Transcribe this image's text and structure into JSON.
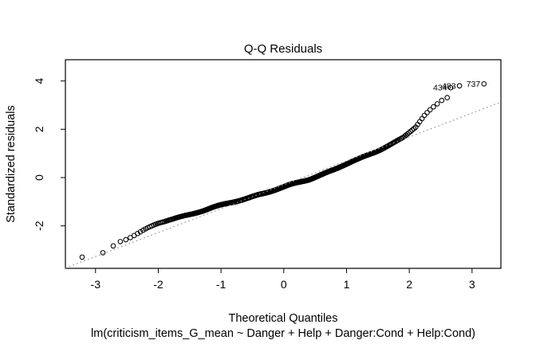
{
  "chart_data": {
    "type": "scatter",
    "title": "Q-Q Residuals",
    "xlabel": "Theoretical Quantiles",
    "ylabel": "Standardized residuals",
    "caption": "lm(criticism_items_G_mean ~ Danger + Help + Danger:Cond + Help:Cond)",
    "x_ticks": [
      -3,
      -2,
      -1,
      0,
      1,
      2,
      3
    ],
    "y_ticks": [
      -2,
      0,
      2,
      4
    ],
    "x_range": [
      -3.48,
      3.46
    ],
    "y_range": [
      -3.76,
      4.88
    ],
    "grid": false,
    "legend": "none",
    "n_points": 757,
    "qq_curve_anchors": [
      [
        -3.27,
        -3.3
      ],
      [
        -2.95,
        -3.18
      ],
      [
        -2.8,
        -3.0
      ],
      [
        -2.65,
        -2.65
      ],
      [
        -2.5,
        -2.5
      ],
      [
        -2.3,
        -2.28
      ],
      [
        -2.0,
        -1.95
      ],
      [
        -1.7,
        -1.7
      ],
      [
        -1.4,
        -1.45
      ],
      [
        -1.0,
        -1.15
      ],
      [
        -0.7,
        -0.9
      ],
      [
        -0.4,
        -0.65
      ],
      [
        0.0,
        -0.42
      ],
      [
        0.4,
        -0.1
      ],
      [
        0.8,
        0.3
      ],
      [
        1.2,
        0.75
      ],
      [
        1.6,
        1.3
      ],
      [
        1.9,
        1.68
      ],
      [
        2.1,
        2.1
      ],
      [
        2.25,
        2.6
      ],
      [
        2.4,
        2.95
      ],
      [
        2.55,
        3.28
      ],
      [
        2.62,
        3.35
      ]
    ],
    "reference_line": {
      "style": "dotted",
      "color": "#949494",
      "slope": 0.99,
      "intercept": -0.3
    },
    "outliers": [
      {
        "label": "434",
        "x": 2.66,
        "y": 3.72
      },
      {
        "label": "483",
        "x": 2.8,
        "y": 3.8
      },
      {
        "label": "737",
        "x": 3.19,
        "y": 3.88
      }
    ],
    "point_style": {
      "shape": "open-circle",
      "color": "#000000",
      "radius_px": 2.8
    },
    "axis_color": "#000000",
    "background_color": "#ffffff"
  }
}
